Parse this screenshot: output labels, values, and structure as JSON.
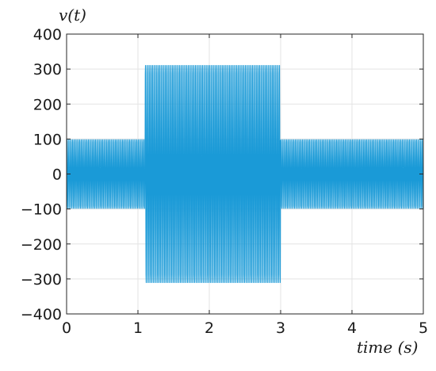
{
  "chart_data": {
    "type": "line",
    "title": "",
    "xlabel": "time (s)",
    "ylabel": "v(t)",
    "xlim": [
      0,
      5
    ],
    "ylim": [
      -400,
      400
    ],
    "x_ticks": [
      0,
      1,
      2,
      3,
      4,
      5
    ],
    "y_ticks": [
      400,
      300,
      200,
      100,
      0,
      -100,
      -200,
      -300,
      -400
    ],
    "x_tick_labels": [
      "0",
      "1",
      "2",
      "3",
      "4",
      "5"
    ],
    "y_tick_labels": [
      "400",
      "300",
      "200",
      "100",
      "0",
      "−100",
      "−200",
      "−300",
      "−400"
    ],
    "grid": true,
    "legend": "none",
    "series_color": "#1a9ad7",
    "series": [
      {
        "signal": "sinusoid",
        "frequency_hz": 50,
        "segments": [
          {
            "t_start": 0.0,
            "t_end": 1.1,
            "amplitude": 103
          },
          {
            "t_start": 1.1,
            "t_end": 3.0,
            "amplitude": 325
          },
          {
            "t_start": 3.0,
            "t_end": 5.0,
            "amplitude": 103
          }
        ]
      }
    ]
  }
}
